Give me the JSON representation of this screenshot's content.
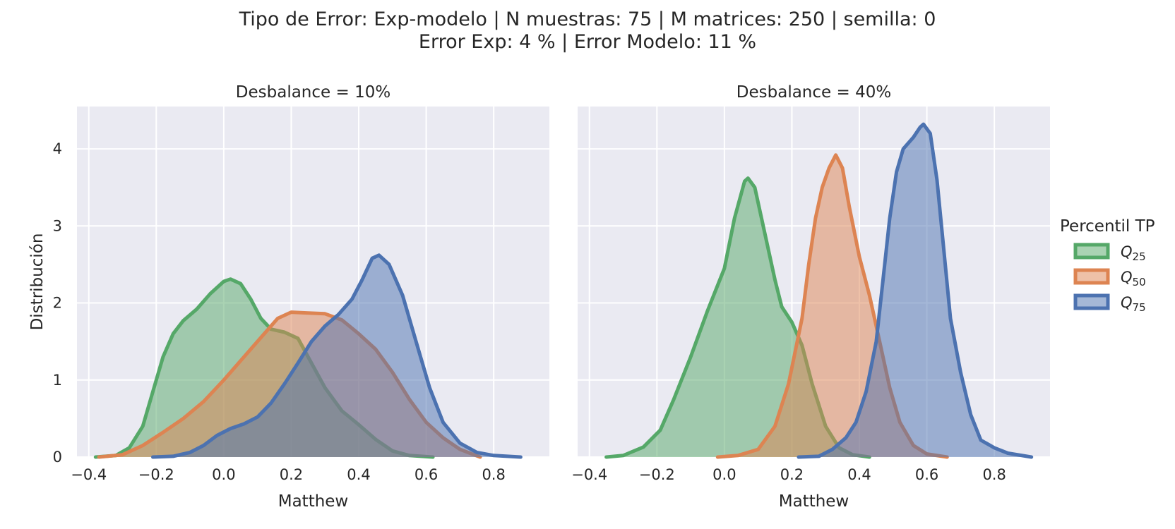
{
  "suptitle": {
    "line1": "Tipo de Error: Exp-modelo | N muestras: 75 | M matrices: 250 | semilla: 0",
    "line2": "Error Exp: 4 % | Error Modelo: 11 %"
  },
  "chart_data": {
    "type": "area",
    "ylabel": "Distribución",
    "ylim": [
      0,
      4.55
    ],
    "yticks": [
      0,
      1,
      2,
      3,
      4
    ],
    "xticks": [
      -0.4,
      -0.2,
      0.0,
      0.2,
      0.4,
      0.6,
      0.8
    ],
    "xtick_labels": [
      "−0.4",
      "−0.2",
      "0.0",
      "0.2",
      "0.4",
      "0.6",
      "0.8"
    ],
    "grid": true,
    "legend": {
      "title": "Percentil TP",
      "placement": "right",
      "entries": [
        {
          "base": "Q",
          "sub": "25",
          "color": "#55a868"
        },
        {
          "base": "Q",
          "sub": "50",
          "color": "#dd8452"
        },
        {
          "base": "Q",
          "sub": "75",
          "color": "#4c72b0"
        }
      ]
    },
    "panels": [
      {
        "title": "Desbalance = 10%",
        "xlabel": "Matthew",
        "xlim": [
          -0.435,
          0.965
        ],
        "series": [
          {
            "color": "#55a868",
            "points": [
              [
                -0.38,
                0
              ],
              [
                -0.32,
                0.02
              ],
              [
                -0.28,
                0.12
              ],
              [
                -0.24,
                0.4
              ],
              [
                -0.21,
                0.85
              ],
              [
                -0.18,
                1.3
              ],
              [
                -0.15,
                1.6
              ],
              [
                -0.12,
                1.77
              ],
              [
                -0.08,
                1.92
              ],
              [
                -0.04,
                2.12
              ],
              [
                0.0,
                2.28
              ],
              [
                0.02,
                2.31
              ],
              [
                0.05,
                2.25
              ],
              [
                0.08,
                2.05
              ],
              [
                0.11,
                1.8
              ],
              [
                0.14,
                1.66
              ],
              [
                0.18,
                1.62
              ],
              [
                0.22,
                1.54
              ],
              [
                0.25,
                1.3
              ],
              [
                0.3,
                0.9
              ],
              [
                0.35,
                0.6
              ],
              [
                0.4,
                0.42
              ],
              [
                0.45,
                0.23
              ],
              [
                0.5,
                0.08
              ],
              [
                0.55,
                0.02
              ],
              [
                0.62,
                0
              ]
            ]
          },
          {
            "color": "#dd8452",
            "points": [
              [
                -0.37,
                0
              ],
              [
                -0.3,
                0.03
              ],
              [
                -0.24,
                0.15
              ],
              [
                -0.18,
                0.32
              ],
              [
                -0.12,
                0.5
              ],
              [
                -0.06,
                0.72
              ],
              [
                0.0,
                1.0
              ],
              [
                0.06,
                1.3
              ],
              [
                0.12,
                1.6
              ],
              [
                0.16,
                1.8
              ],
              [
                0.2,
                1.88
              ],
              [
                0.25,
                1.87
              ],
              [
                0.3,
                1.86
              ],
              [
                0.35,
                1.78
              ],
              [
                0.4,
                1.6
              ],
              [
                0.45,
                1.4
              ],
              [
                0.5,
                1.1
              ],
              [
                0.55,
                0.75
              ],
              [
                0.6,
                0.45
              ],
              [
                0.65,
                0.25
              ],
              [
                0.7,
                0.1
              ],
              [
                0.76,
                0
              ]
            ]
          },
          {
            "color": "#4c72b0",
            "points": [
              [
                -0.21,
                0
              ],
              [
                -0.15,
                0.01
              ],
              [
                -0.1,
                0.06
              ],
              [
                -0.06,
                0.15
              ],
              [
                -0.02,
                0.28
              ],
              [
                0.02,
                0.37
              ],
              [
                0.06,
                0.43
              ],
              [
                0.1,
                0.52
              ],
              [
                0.14,
                0.7
              ],
              [
                0.18,
                0.95
              ],
              [
                0.22,
                1.22
              ],
              [
                0.26,
                1.5
              ],
              [
                0.3,
                1.7
              ],
              [
                0.34,
                1.85
              ],
              [
                0.38,
                2.05
              ],
              [
                0.41,
                2.3
              ],
              [
                0.44,
                2.58
              ],
              [
                0.46,
                2.62
              ],
              [
                0.49,
                2.5
              ],
              [
                0.53,
                2.1
              ],
              [
                0.57,
                1.5
              ],
              [
                0.61,
                0.9
              ],
              [
                0.65,
                0.45
              ],
              [
                0.7,
                0.18
              ],
              [
                0.75,
                0.06
              ],
              [
                0.8,
                0.02
              ],
              [
                0.88,
                0
              ]
            ]
          }
        ]
      },
      {
        "title": "Desbalance = 40%",
        "xlabel": "Matthew",
        "xlim": [
          -0.435,
          0.965
        ],
        "series": [
          {
            "color": "#55a868",
            "points": [
              [
                -0.35,
                0
              ],
              [
                -0.3,
                0.02
              ],
              [
                -0.24,
                0.13
              ],
              [
                -0.19,
                0.35
              ],
              [
                -0.15,
                0.75
              ],
              [
                -0.1,
                1.3
              ],
              [
                -0.05,
                1.9
              ],
              [
                0.0,
                2.45
              ],
              [
                0.03,
                3.1
              ],
              [
                0.06,
                3.58
              ],
              [
                0.07,
                3.62
              ],
              [
                0.09,
                3.5
              ],
              [
                0.12,
                2.9
              ],
              [
                0.15,
                2.3
              ],
              [
                0.17,
                1.95
              ],
              [
                0.2,
                1.75
              ],
              [
                0.23,
                1.45
              ],
              [
                0.26,
                0.95
              ],
              [
                0.3,
                0.4
              ],
              [
                0.34,
                0.12
              ],
              [
                0.38,
                0.03
              ],
              [
                0.43,
                0
              ]
            ]
          },
          {
            "color": "#dd8452",
            "points": [
              [
                -0.02,
                0
              ],
              [
                0.04,
                0.02
              ],
              [
                0.1,
                0.1
              ],
              [
                0.15,
                0.4
              ],
              [
                0.19,
                0.95
              ],
              [
                0.23,
                1.8
              ],
              [
                0.25,
                2.5
              ],
              [
                0.27,
                3.1
              ],
              [
                0.29,
                3.5
              ],
              [
                0.31,
                3.75
              ],
              [
                0.33,
                3.92
              ],
              [
                0.35,
                3.75
              ],
              [
                0.37,
                3.25
              ],
              [
                0.4,
                2.6
              ],
              [
                0.43,
                2.1
              ],
              [
                0.46,
                1.5
              ],
              [
                0.49,
                0.9
              ],
              [
                0.52,
                0.45
              ],
              [
                0.56,
                0.15
              ],
              [
                0.6,
                0.04
              ],
              [
                0.66,
                0
              ]
            ]
          },
          {
            "color": "#4c72b0",
            "points": [
              [
                0.22,
                0
              ],
              [
                0.28,
                0.01
              ],
              [
                0.32,
                0.1
              ],
              [
                0.36,
                0.25
              ],
              [
                0.39,
                0.45
              ],
              [
                0.42,
                0.85
              ],
              [
                0.45,
                1.5
              ],
              [
                0.47,
                2.3
              ],
              [
                0.49,
                3.1
              ],
              [
                0.51,
                3.7
              ],
              [
                0.53,
                4.0
              ],
              [
                0.56,
                4.15
              ],
              [
                0.58,
                4.28
              ],
              [
                0.59,
                4.32
              ],
              [
                0.61,
                4.2
              ],
              [
                0.63,
                3.6
              ],
              [
                0.65,
                2.7
              ],
              [
                0.67,
                1.8
              ],
              [
                0.7,
                1.1
              ],
              [
                0.73,
                0.55
              ],
              [
                0.76,
                0.22
              ],
              [
                0.8,
                0.12
              ],
              [
                0.84,
                0.05
              ],
              [
                0.91,
                0
              ]
            ]
          }
        ]
      }
    ]
  }
}
